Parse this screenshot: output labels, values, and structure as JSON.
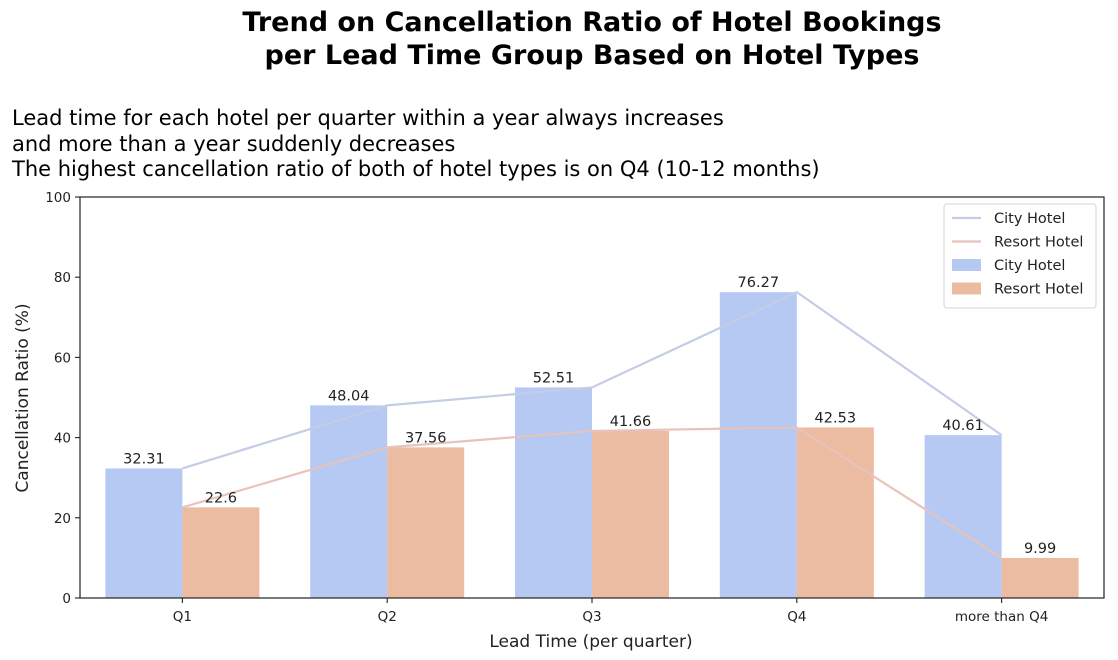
{
  "chart_data": {
    "type": "bar",
    "title_lines": [
      "Trend on Cancellation Ratio of Hotel Bookings",
      "per Lead Time Group Based on Hotel Types"
    ],
    "subtitle_lines": [
      "Lead time for each hotel per quarter within a year always increases",
      "and more than a year suddenly decreases",
      "The highest cancellation ratio of both of hotel types is on Q4 (10-12 months)"
    ],
    "xlabel": "Lead Time (per quarter)",
    "ylabel": "Cancellation Ratio (%)",
    "ylim": [
      0,
      100
    ],
    "yticks": [
      0,
      20,
      40,
      60,
      80,
      100
    ],
    "categories": [
      "Q1",
      "Q2",
      "Q3",
      "Q4",
      "more than Q4"
    ],
    "series": [
      {
        "name": "City Hotel",
        "values": [
          32.31,
          48.04,
          52.51,
          76.27,
          40.61
        ],
        "bar_color": "#b5c9f2",
        "line_color": "#c4cde6"
      },
      {
        "name": "Resort Hotel",
        "values": [
          22.6,
          37.56,
          41.66,
          42.53,
          9.99
        ],
        "bar_color": "#ebbba2",
        "line_color": "#e7c3bb"
      }
    ],
    "value_labels": [
      [
        "32.31",
        "48.04",
        "52.51",
        "76.27",
        "40.61"
      ],
      [
        "22.6",
        "37.56",
        "41.66",
        "42.53",
        "9.99"
      ]
    ],
    "legend": {
      "placement": "top-right",
      "entries": [
        {
          "label": "City Hotel",
          "kind": "line",
          "series": 0
        },
        {
          "label": "Resort Hotel",
          "kind": "line",
          "series": 1
        },
        {
          "label": "City Hotel",
          "kind": "bar",
          "series": 0
        },
        {
          "label": "Resort Hotel",
          "kind": "bar",
          "series": 1
        }
      ]
    },
    "grid": false
  }
}
